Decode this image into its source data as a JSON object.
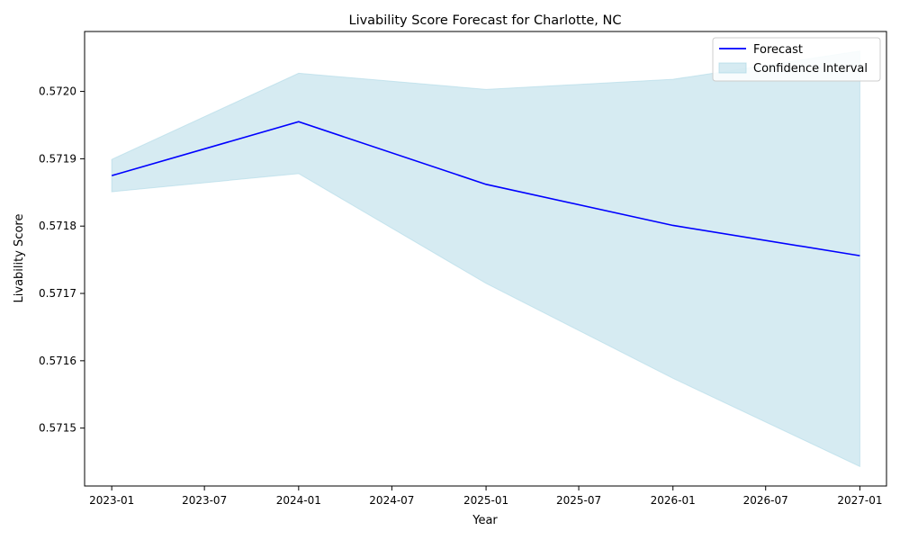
{
  "chart_data": {
    "type": "line",
    "title": "Livability Score Forecast for Charlotte, NC",
    "xlabel": "Year",
    "ylabel": "Livability Score",
    "x": [
      "2023-01",
      "2024-01",
      "2025-01",
      "2026-01",
      "2027-01"
    ],
    "series": [
      {
        "name": "Forecast",
        "values": [
          0.571875,
          0.571955,
          0.571862,
          0.571801,
          0.571756
        ],
        "color": "#0000ff"
      }
    ],
    "confidence_interval": {
      "name": "Confidence Interval",
      "lower": [
        0.571851,
        0.571878,
        0.571715,
        0.571574,
        0.571443
      ],
      "upper": [
        0.571899,
        0.572027,
        0.572003,
        0.572018,
        0.57206
      ],
      "color": "#add8e6"
    },
    "x_ticks": [
      "2023-01",
      "2023-07",
      "2024-01",
      "2024-07",
      "2025-01",
      "2025-07",
      "2026-01",
      "2026-07",
      "2027-01"
    ],
    "y_ticks": [
      "0.5715",
      "0.5716",
      "0.5717",
      "0.5718",
      "0.5719",
      "0.5720"
    ],
    "xlim": [
      "2022-11-09",
      "2027-02-22"
    ],
    "ylim": [
      0.571414,
      0.572089
    ],
    "grid": false,
    "legend_position": "top-right"
  }
}
